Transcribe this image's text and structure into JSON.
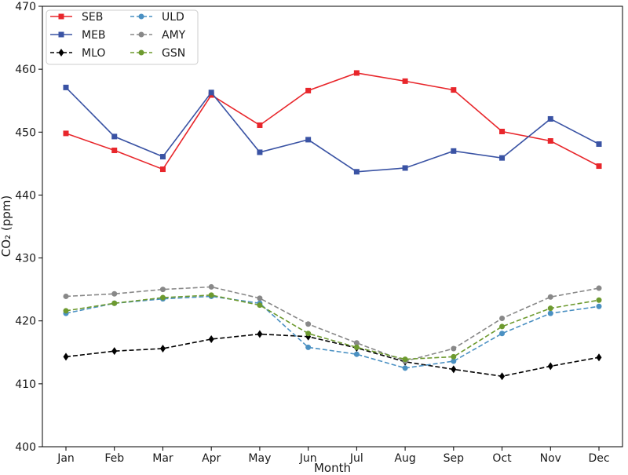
{
  "chart_data": {
    "type": "line",
    "xlabel": "Month",
    "ylabel": "CO₂ (ppm)",
    "ylim": [
      400,
      470
    ],
    "yticks": [
      "400",
      "410",
      "420",
      "430",
      "440",
      "450",
      "460",
      "470"
    ],
    "categories": [
      "Jan",
      "Feb",
      "Mar",
      "Apr",
      "May",
      "Jun",
      "Jul",
      "Aug",
      "Sep",
      "Oct",
      "Nov",
      "Dec"
    ],
    "grid": false,
    "legend_position": "top-left",
    "series": [
      {
        "name": "SEB",
        "color": "#e8262b",
        "dash": "solid",
        "marker": "square",
        "values": [
          449.8,
          447.1,
          444.1,
          455.9,
          451.1,
          456.6,
          459.4,
          458.1,
          456.7,
          450.1,
          448.6,
          444.6
        ]
      },
      {
        "name": "MEB",
        "color": "#3a53a4",
        "dash": "solid",
        "marker": "square",
        "values": [
          457.1,
          449.3,
          446.1,
          456.3,
          446.8,
          448.8,
          443.7,
          444.3,
          447.0,
          445.9,
          452.1,
          448.1
        ]
      },
      {
        "name": "MLO",
        "color": "#000000",
        "dash": "dashed",
        "marker": "diamond",
        "values": [
          414.3,
          415.2,
          415.6,
          417.1,
          417.9,
          417.5,
          415.7,
          413.5,
          412.3,
          411.2,
          412.8,
          414.2
        ]
      },
      {
        "name": "ULD",
        "color": "#4a90c2",
        "dash": "dashed",
        "marker": "circle",
        "values": [
          421.2,
          422.8,
          423.5,
          423.9,
          422.8,
          415.8,
          414.7,
          412.5,
          413.6,
          418.0,
          421.2,
          422.3
        ]
      },
      {
        "name": "AMY",
        "color": "#888888",
        "dash": "dashed",
        "marker": "circle",
        "values": [
          423.9,
          424.3,
          425.0,
          425.4,
          423.6,
          419.5,
          416.5,
          413.6,
          415.6,
          420.4,
          423.8,
          425.2
        ]
      },
      {
        "name": "GSN",
        "color": "#6d9a2f",
        "dash": "dashed",
        "marker": "circle",
        "values": [
          421.6,
          422.8,
          423.7,
          424.1,
          422.5,
          418.0,
          415.8,
          413.9,
          414.3,
          419.1,
          422.0,
          423.3
        ]
      }
    ]
  }
}
